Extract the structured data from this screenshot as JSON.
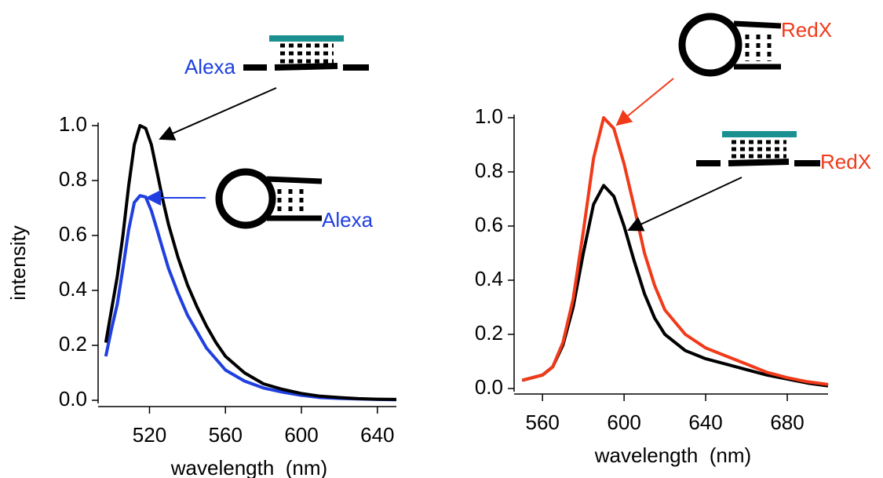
{
  "chart_data": [
    {
      "type": "line",
      "x_label": "wavelength  (nm)",
      "y_label": "intensity",
      "x": [
        497,
        500,
        503,
        506,
        509,
        512,
        515,
        518,
        521,
        524,
        527,
        530,
        535,
        540,
        545,
        550,
        555,
        560,
        570,
        580,
        590,
        600,
        610,
        620,
        630,
        640,
        650
      ],
      "series": [
        {
          "color": "#000000",
          "values": [
            0.21,
            0.33,
            0.45,
            0.6,
            0.78,
            0.93,
            1.0,
            0.99,
            0.93,
            0.83,
            0.73,
            0.64,
            0.52,
            0.42,
            0.34,
            0.27,
            0.21,
            0.16,
            0.1,
            0.06,
            0.04,
            0.025,
            0.015,
            0.01,
            0.006,
            0.004,
            0.003
          ]
        },
        {
          "color": "#1f3fe0",
          "values": [
            0.16,
            0.26,
            0.35,
            0.48,
            0.62,
            0.72,
            0.745,
            0.74,
            0.69,
            0.62,
            0.55,
            0.48,
            0.39,
            0.31,
            0.25,
            0.19,
            0.15,
            0.11,
            0.07,
            0.045,
            0.03,
            0.018,
            0.01,
            0.007,
            0.005,
            0.003,
            0.002
          ]
        }
      ],
      "xlim": [
        495,
        650
      ],
      "xticks": [
        520,
        560,
        600,
        640
      ],
      "ylim": [
        0,
        1
      ],
      "yticks": [
        {
          "value": 0,
          "label": "0.0"
        },
        0.2,
        0.4,
        0.6,
        0.8,
        {
          "value": 1,
          "label": "1.0"
        }
      ],
      "annotations": [
        {
          "text": "Alexa",
          "color": "#1f3fe0"
        },
        {
          "text": "Alexa",
          "color": "#1f3fe0"
        }
      ]
    },
    {
      "type": "line",
      "x_label": "wavelength  (nm)",
      "x": [
        550,
        560,
        565,
        570,
        575,
        580,
        585,
        590,
        595,
        600,
        605,
        610,
        615,
        620,
        630,
        640,
        650,
        660,
        670,
        680,
        690,
        700
      ],
      "series": [
        {
          "color": "#f03a1a",
          "values": [
            0.03,
            0.05,
            0.08,
            0.17,
            0.33,
            0.58,
            0.85,
            1.0,
            0.96,
            0.83,
            0.67,
            0.5,
            0.38,
            0.29,
            0.2,
            0.15,
            0.12,
            0.09,
            0.06,
            0.04,
            0.025,
            0.015
          ]
        },
        {
          "color": "#000000",
          "values": [
            0.03,
            0.05,
            0.08,
            0.16,
            0.3,
            0.5,
            0.68,
            0.75,
            0.71,
            0.6,
            0.47,
            0.35,
            0.26,
            0.2,
            0.14,
            0.11,
            0.09,
            0.07,
            0.05,
            0.035,
            0.02,
            0.01
          ]
        }
      ],
      "xlim": [
        548,
        700
      ],
      "xticks": [
        560,
        600,
        640,
        680
      ],
      "ylim": [
        0,
        1
      ],
      "yticks": [
        {
          "value": 0,
          "label": "0.0"
        },
        0.2,
        0.4,
        0.6,
        0.8,
        {
          "value": 1,
          "label": "1.0"
        }
      ],
      "annotations": [
        {
          "text": "RedX",
          "color": "#f03a1a"
        },
        {
          "text": "RedX",
          "color": "#f03a1a"
        }
      ]
    }
  ]
}
